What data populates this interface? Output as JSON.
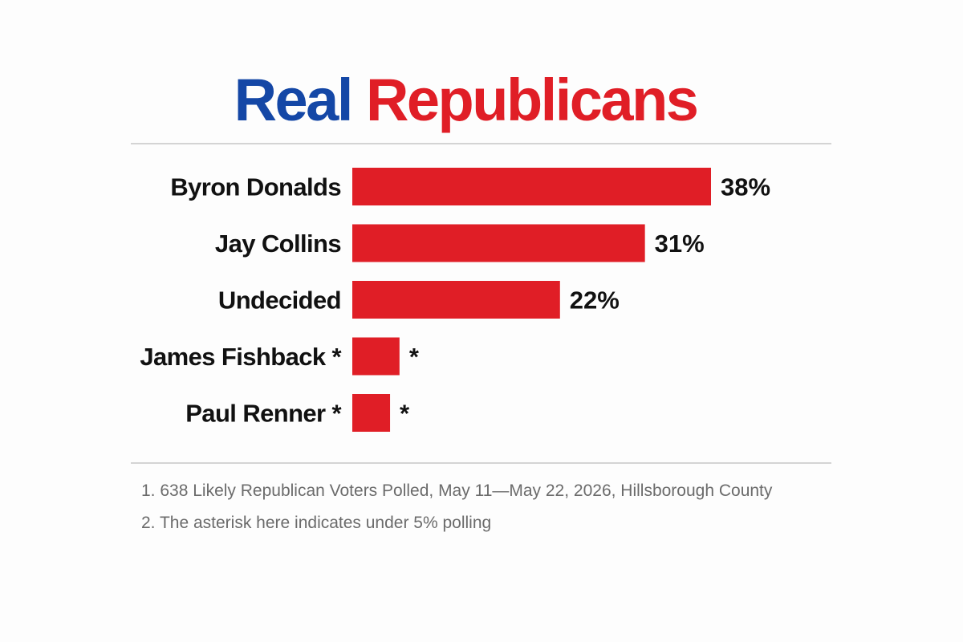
{
  "title": {
    "part1": "Real",
    "part2": "Republicans",
    "part1_color": "#1447a6",
    "part2_color": "#e01e26"
  },
  "chart_data": {
    "type": "bar",
    "orientation": "horizontal",
    "categories": [
      "Byron Donalds",
      "Jay Collins",
      "Undecided",
      "James Fishback *",
      "Paul Renner *"
    ],
    "values": [
      38,
      31,
      22,
      5,
      4
    ],
    "value_labels": [
      "38%",
      "31%",
      "22%",
      "*",
      "*"
    ],
    "bar_color": "#e01e26",
    "xlim": [
      0,
      38
    ],
    "grid": false,
    "legend": "none"
  },
  "footnotes": [
    "1. 638 Likely Republican Voters Polled, May 11—May 22, 2026, Hillsborough County",
    "2. The asterisk here indicates under 5% polling"
  ]
}
